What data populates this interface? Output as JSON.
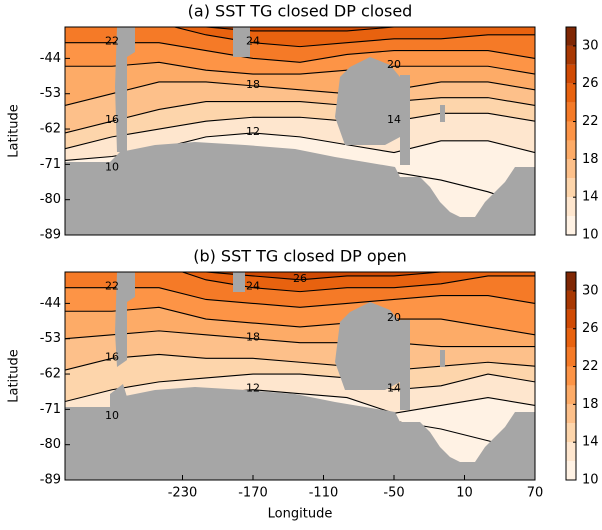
{
  "chart_data": [
    {
      "type": "contourf",
      "title": "(a) SST TG closed DP closed",
      "ylabel": "Latitude",
      "xlim": [
        -330,
        70
      ],
      "ylim": [
        -89,
        -36
      ],
      "yticks": [
        -89,
        -80,
        -71,
        -62,
        -53,
        -44
      ],
      "levels": [
        10,
        12,
        14,
        16,
        18,
        20,
        22,
        24,
        26,
        28,
        30,
        32
      ],
      "colors": [
        "#fff2e4",
        "#fee6ce",
        "#fdd5ab",
        "#fdc08a",
        "#fdab67",
        "#fd9446",
        "#f57a27",
        "#e8620f",
        "#d04a04",
        "#a83803",
        "#7f2704"
      ],
      "cbar_ticks": [
        10,
        14,
        18,
        22,
        26,
        30
      ],
      "x": [
        -330,
        -290,
        -250,
        -210,
        -170,
        -130,
        -90,
        -50,
        -10,
        30,
        70
      ],
      "contours": [
        {
          "level": 10,
          "lat": [
            -72,
            -72,
            -71,
            -68,
            -67,
            -68,
            -71,
            -73,
            -75,
            -78,
            -82
          ]
        },
        {
          "level": 12,
          "lat": [
            -70,
            -69,
            -67,
            -64,
            -63,
            -64,
            -66,
            -68,
            -65,
            -65,
            -68
          ]
        },
        {
          "level": 14,
          "lat": [
            -67,
            -64,
            -62,
            -60,
            -59,
            -59,
            -60,
            -60,
            -58,
            -58,
            -60
          ]
        },
        {
          "level": 16,
          "lat": [
            -63,
            -60,
            -57,
            -55,
            -55,
            -55,
            -56,
            -55,
            -54,
            -54,
            -56
          ]
        },
        {
          "level": 18,
          "lat": [
            -56,
            -53,
            -50,
            -50,
            -51,
            -52,
            -53,
            -52,
            -50,
            -50,
            -52
          ]
        },
        {
          "level": 20,
          "lat": [
            -46,
            -46,
            -45,
            -47,
            -48,
            -48,
            -47,
            -46,
            -46,
            -46,
            -48
          ]
        },
        {
          "level": 22,
          "lat": [
            -40,
            -40,
            -40,
            -42,
            -44,
            -45,
            -43,
            -42,
            -42,
            -42,
            -44
          ]
        },
        {
          "level": 24,
          "lat": [
            -34,
            -34,
            -35,
            -38,
            -40,
            -41,
            -40,
            -39,
            -39,
            -38,
            -38
          ]
        },
        {
          "level": 26,
          "lat": [
            -30,
            -30,
            -32,
            -36,
            -37,
            -37,
            -37,
            -36,
            -36,
            -32,
            -32
          ]
        },
        {
          "level": 28,
          "lat": [
            -30,
            -30,
            -30,
            -34,
            -35,
            -34,
            -34,
            -33,
            -33,
            -30,
            -30
          ]
        }
      ]
    },
    {
      "type": "contourf",
      "title": "(b) SST TG closed DP open",
      "ylabel": "Latitude",
      "xlabel": "Longitude",
      "xlim": [
        -330,
        70
      ],
      "ylim": [
        -89,
        -36
      ],
      "yticks": [
        -89,
        -80,
        -71,
        -62,
        -53,
        -44
      ],
      "xticks": [
        -230,
        -170,
        -110,
        -50,
        10,
        70
      ],
      "levels": [
        10,
        12,
        14,
        16,
        18,
        20,
        22,
        24,
        26,
        28,
        30,
        32
      ],
      "colors": [
        "#fff2e4",
        "#fee6ce",
        "#fdd5ab",
        "#fdc08a",
        "#fdab67",
        "#fd9446",
        "#f57a27",
        "#e8620f",
        "#d04a04",
        "#a83803",
        "#7f2704"
      ],
      "cbar_ticks": [
        10,
        14,
        18,
        22,
        26,
        30
      ],
      "x": [
        -330,
        -290,
        -250,
        -210,
        -170,
        -130,
        -90,
        -50,
        -10,
        30,
        70
      ],
      "contours": [
        {
          "level": 10,
          "lat": [
            -74,
            -73,
            -72,
            -70,
            -69,
            -70,
            -72,
            -74,
            -76,
            -79,
            -82
          ]
        },
        {
          "level": 12,
          "lat": [
            -72,
            -71,
            -69,
            -67,
            -66,
            -67,
            -68,
            -72,
            -70,
            -68,
            -70
          ]
        },
        {
          "level": 14,
          "lat": [
            -69,
            -66,
            -64,
            -63,
            -62,
            -62,
            -63,
            -66,
            -65,
            -62,
            -64
          ]
        },
        {
          "level": 16,
          "lat": [
            -61,
            -58,
            -57,
            -58,
            -58,
            -59,
            -60,
            -61,
            -60,
            -59,
            -60
          ]
        },
        {
          "level": 18,
          "lat": [
            -53,
            -52,
            -51,
            -52,
            -53,
            -54,
            -54,
            -54,
            -55,
            -55,
            -55
          ]
        },
        {
          "level": 20,
          "lat": [
            -46,
            -46,
            -45,
            -48,
            -49,
            -50,
            -49,
            -48,
            -48,
            -50,
            -52
          ]
        },
        {
          "level": 22,
          "lat": [
            -40,
            -40,
            -40,
            -43,
            -44,
            -45,
            -44,
            -43,
            -42,
            -42,
            -44
          ]
        },
        {
          "level": 24,
          "lat": [
            -35,
            -35,
            -34,
            -38,
            -40,
            -41,
            -40,
            -40,
            -39,
            -37,
            -37
          ]
        },
        {
          "level": 26,
          "lat": [
            -32,
            -32,
            -32,
            -36,
            -37,
            -38,
            -37,
            -37,
            -36,
            -33,
            -33
          ]
        },
        {
          "level": 28,
          "lat": [
            -30,
            -30,
            -30,
            -34,
            -35,
            -35,
            -34,
            -34,
            -33,
            -30,
            -30
          ]
        }
      ]
    }
  ]
}
